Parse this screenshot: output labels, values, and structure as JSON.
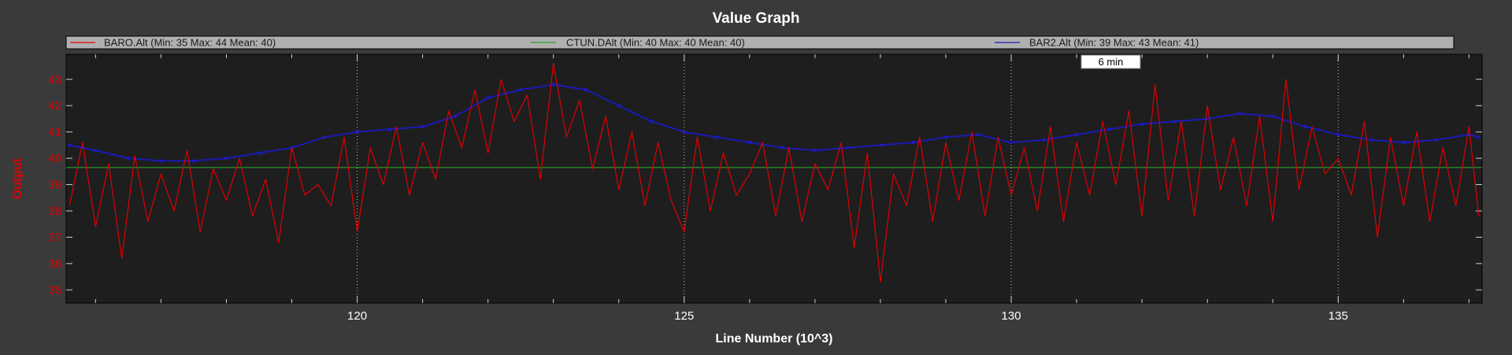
{
  "chart_data": {
    "type": "line",
    "title": "Value Graph",
    "xlabel": "Line Number (10^3)",
    "ylabel": "Output",
    "xlim": [
      115.55,
      137.2
    ],
    "ylim": [
      34.5,
      43.95
    ],
    "x_ticks": [
      120,
      125,
      130,
      135
    ],
    "x_tick_labels": [
      "120",
      "125",
      "130",
      "135"
    ],
    "y_ticks": [
      35,
      36,
      37,
      38,
      39,
      40,
      41,
      42,
      43
    ],
    "y_tick_labels": [
      "35",
      "36",
      "37",
      "38",
      "39",
      "40",
      "41",
      "42",
      "43"
    ],
    "grid": true,
    "legend_position": "top",
    "annotation": "6 min",
    "series": [
      {
        "name": "BARO.Alt",
        "legend_label": "BARO.Alt (Min: 35 Max: 44 Mean: 40)",
        "color": "#e00000",
        "x": [
          115.6,
          115.8,
          116.0,
          116.2,
          116.4,
          116.6,
          116.8,
          117.0,
          117.2,
          117.4,
          117.6,
          117.8,
          118.0,
          118.2,
          118.4,
          118.6,
          118.8,
          119.0,
          119.2,
          119.4,
          119.6,
          119.8,
          120.0,
          120.2,
          120.4,
          120.6,
          120.8,
          121.0,
          121.2,
          121.4,
          121.6,
          121.8,
          122.0,
          122.2,
          122.4,
          122.6,
          122.8,
          123.0,
          123.2,
          123.4,
          123.6,
          123.8,
          124.0,
          124.2,
          124.4,
          124.6,
          124.8,
          125.0,
          125.2,
          125.4,
          125.6,
          125.8,
          126.0,
          126.2,
          126.4,
          126.6,
          126.8,
          127.0,
          127.2,
          127.4,
          127.6,
          127.8,
          128.0,
          128.2,
          128.4,
          128.6,
          128.8,
          129.0,
          129.2,
          129.4,
          129.6,
          129.8,
          130.0,
          130.2,
          130.4,
          130.6,
          130.8,
          131.0,
          131.2,
          131.4,
          131.6,
          131.8,
          132.0,
          132.2,
          132.4,
          132.6,
          132.8,
          133.0,
          133.2,
          133.4,
          133.6,
          133.8,
          134.0,
          134.2,
          134.4,
          134.6,
          134.8,
          135.0,
          135.2,
          135.4,
          135.6,
          135.8,
          136.0,
          136.2,
          136.4,
          136.6,
          136.8,
          137.0,
          137.15
        ],
        "y": [
          38.2,
          40.6,
          37.4,
          39.8,
          36.2,
          40.1,
          37.6,
          39.4,
          38.0,
          40.3,
          37.2,
          39.6,
          38.4,
          40.0,
          37.8,
          39.2,
          36.8,
          40.4,
          38.6,
          39.0,
          38.2,
          40.8,
          37.2,
          40.4,
          39.0,
          41.2,
          38.6,
          40.6,
          39.2,
          41.8,
          40.4,
          42.6,
          40.2,
          43.0,
          41.4,
          42.4,
          39.2,
          43.6,
          40.8,
          42.2,
          39.6,
          41.6,
          38.8,
          41.0,
          38.2,
          40.6,
          38.4,
          37.2,
          40.8,
          38.0,
          40.2,
          38.6,
          39.4,
          40.6,
          37.8,
          40.4,
          37.6,
          39.8,
          38.8,
          40.6,
          36.6,
          40.2,
          35.3,
          39.4,
          38.2,
          40.8,
          37.6,
          40.6,
          38.4,
          41.0,
          37.8,
          40.8,
          38.6,
          40.4,
          38.0,
          41.2,
          37.6,
          40.6,
          38.6,
          41.4,
          39.0,
          41.8,
          37.8,
          42.8,
          38.4,
          41.4,
          37.8,
          42.0,
          38.8,
          40.8,
          38.2,
          41.6,
          37.6,
          43.0,
          38.8,
          41.2,
          39.4,
          40.0,
          38.6,
          41.4,
          37.0,
          40.8,
          38.2,
          41.0,
          37.6,
          40.4,
          38.2,
          41.2,
          37.8
        ]
      },
      {
        "name": "CTUN.DAlt",
        "legend_label": "CTUN.DAlt (Min: 40 Max: 40 Mean: 40)",
        "color": "#2aa02a",
        "x": [
          115.55,
          137.2
        ],
        "y": [
          39.65,
          39.65
        ]
      },
      {
        "name": "BAR2.Alt",
        "legend_label": "BAR2.Alt (Min: 39 Max: 43 Mean: 41)",
        "color": "#1a1ab8",
        "x": [
          115.6,
          116.0,
          116.5,
          117.0,
          117.5,
          118.0,
          118.5,
          119.0,
          119.5,
          120.0,
          120.5,
          121.0,
          121.5,
          122.0,
          122.5,
          123.0,
          123.5,
          124.0,
          124.5,
          125.0,
          125.5,
          126.0,
          126.5,
          127.0,
          127.5,
          128.0,
          128.5,
          129.0,
          129.5,
          130.0,
          130.5,
          131.0,
          131.5,
          132.0,
          132.5,
          133.0,
          133.5,
          134.0,
          134.5,
          135.0,
          135.5,
          136.0,
          136.5,
          137.0,
          137.15
        ],
        "y": [
          40.5,
          40.3,
          40.0,
          39.9,
          39.9,
          40.0,
          40.2,
          40.4,
          40.8,
          41.0,
          41.1,
          41.2,
          41.6,
          42.3,
          42.6,
          42.8,
          42.6,
          42.0,
          41.4,
          41.0,
          40.8,
          40.6,
          40.4,
          40.3,
          40.4,
          40.5,
          40.6,
          40.8,
          40.9,
          40.6,
          40.7,
          40.9,
          41.1,
          41.3,
          41.4,
          41.5,
          41.7,
          41.6,
          41.2,
          40.9,
          40.7,
          40.6,
          40.7,
          40.9,
          40.8
        ]
      }
    ]
  }
}
